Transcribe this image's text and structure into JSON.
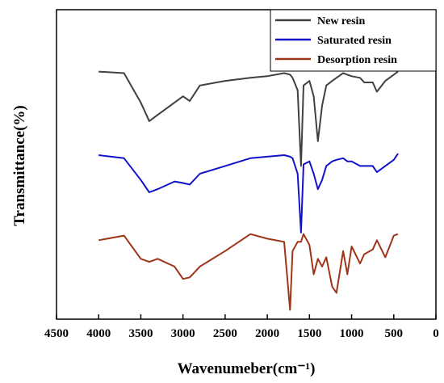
{
  "chart_data": {
    "type": "line",
    "xlabel": "Wavenumeber(cm⁻¹)",
    "ylabel": "Transmittance(%)",
    "x": [
      4000,
      3700,
      3500,
      3400,
      3300,
      3100,
      3000,
      2920,
      2800,
      2500,
      2200,
      2000,
      1800,
      1730,
      1700,
      1640,
      1600,
      1570,
      1500,
      1450,
      1400,
      1350,
      1300,
      1230,
      1180,
      1100,
      1050,
      1000,
      900,
      850,
      750,
      700,
      600,
      500,
      450
    ],
    "series": [
      {
        "name": "New resin",
        "color": "#404040",
        "values": [
          80,
          79.5,
          70,
          64,
          66,
          70,
          72,
          70.5,
          75.5,
          77,
          78,
          78.5,
          79.5,
          79,
          78,
          74,
          49.5,
          75.5,
          77,
          72,
          57.5,
          69,
          75.5,
          77,
          78,
          79.5,
          79,
          78.5,
          78,
          76.5,
          76.5,
          73.5,
          77,
          79,
          80
        ]
      },
      {
        "name": "Saturated resin",
        "color": "#1212cc",
        "values": [
          53,
          52,
          45,
          41,
          42,
          44.5,
          44,
          43.5,
          47,
          49.5,
          52,
          52.5,
          53,
          52.5,
          52,
          47,
          28,
          50,
          51,
          47,
          42,
          45,
          49.5,
          51,
          51.5,
          52,
          51,
          51,
          49.5,
          49.5,
          49.5,
          47.5,
          49.5,
          51.5,
          53.5
        ]
      },
      {
        "name": "Desorption resin",
        "color": "#9e3418",
        "values": [
          25.5,
          27,
          19.5,
          18.5,
          19.5,
          17,
          13,
          13.5,
          17,
          22,
          27.5,
          26,
          25,
          3,
          22,
          25,
          25,
          27.5,
          24,
          14.5,
          19.5,
          17,
          20,
          10.5,
          8.5,
          22,
          14.5,
          23.5,
          18,
          21,
          22.5,
          25.5,
          20,
          27,
          27.5
        ]
      }
    ],
    "xlim": [
      4500,
      0
    ],
    "xticks": [
      4500,
      4000,
      3500,
      3000,
      2500,
      2000,
      1500,
      1000,
      500,
      0
    ],
    "ylim": [
      0,
      100
    ],
    "legend": "upper right"
  }
}
